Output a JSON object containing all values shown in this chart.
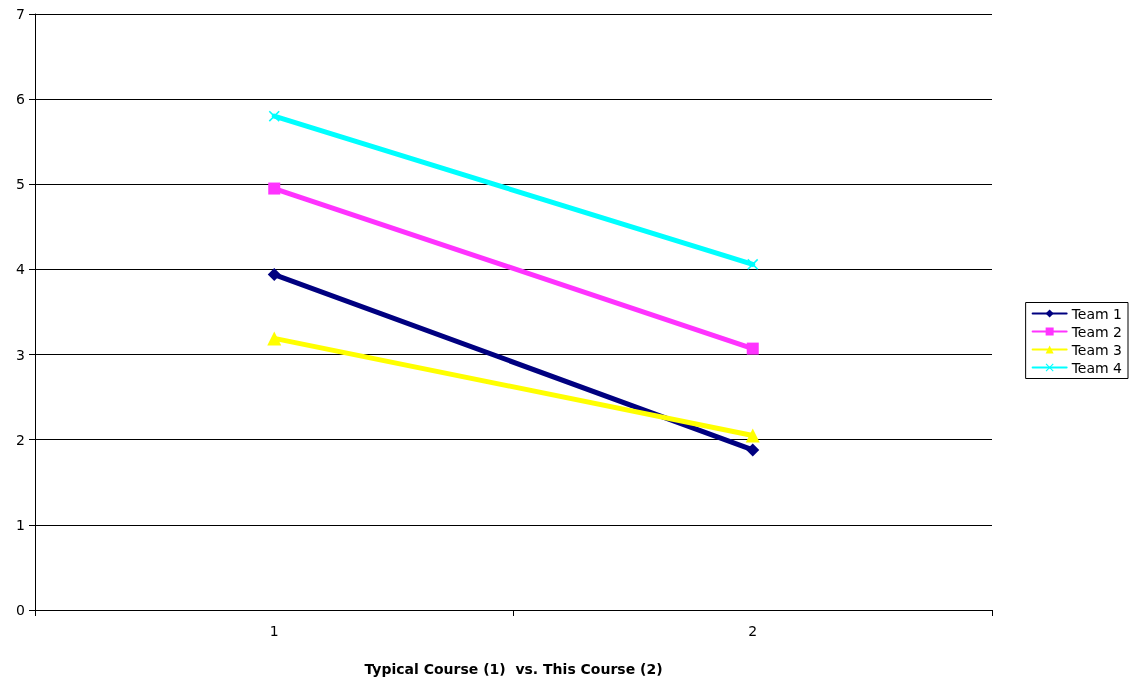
{
  "chart_data": {
    "type": "line",
    "xlabel": "Typical Course (1)  vs. This Course (2)",
    "categories": [
      "1",
      "2"
    ],
    "series": [
      {
        "name": "Team 1",
        "color": "#000080",
        "marker": "diamond",
        "values": [
          3.94,
          1.88
        ]
      },
      {
        "name": "Team 2",
        "color": "#ff33ff",
        "marker": "square",
        "values": [
          4.95,
          3.07
        ]
      },
      {
        "name": "Team 3",
        "color": "#ffff00",
        "marker": "triangle",
        "values": [
          3.19,
          2.05
        ]
      },
      {
        "name": "Team 4",
        "color": "#00ffff",
        "marker": "cross",
        "values": [
          5.8,
          4.06
        ]
      }
    ],
    "ylim": [
      0,
      7
    ],
    "yticks": [
      0,
      1,
      2,
      3,
      4,
      5,
      6,
      7
    ],
    "grid": "y",
    "legend": "right",
    "line_style": "solid"
  }
}
